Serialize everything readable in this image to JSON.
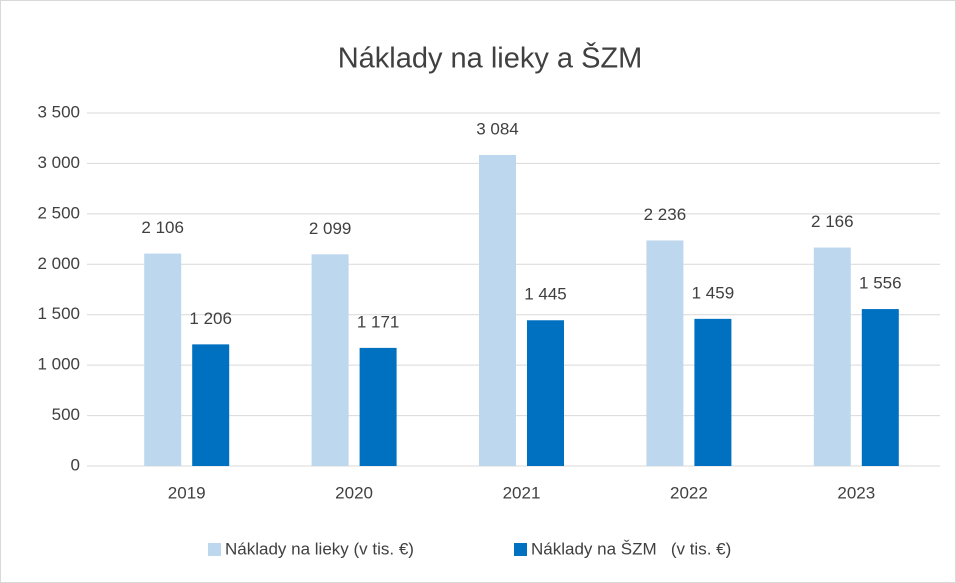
{
  "chart_data": {
    "type": "bar",
    "title": "Náklady na lieky a ŠZM",
    "categories": [
      "2019",
      "2020",
      "2021",
      "2022",
      "2023"
    ],
    "series": [
      {
        "name": "Náklady na lieky (v tis. €)",
        "color": "#bdd7ee",
        "values": [
          2106,
          2099,
          3084,
          2236,
          2166
        ],
        "value_labels": [
          "2 106",
          "2 099",
          "3 084",
          "2 236",
          "2 166"
        ]
      },
      {
        "name": "Náklady na ŠZM   (v tis. €)",
        "color": "#0070c0",
        "values": [
          1206,
          1171,
          1445,
          1459,
          1556
        ],
        "value_labels": [
          "1 206",
          "1 171",
          "1 445",
          "1 459",
          "1 556"
        ]
      }
    ],
    "ylim": [
      0,
      3500
    ],
    "yticks": [
      0,
      500,
      {
        "value": 1000,
        "label": "1 000"
      },
      {
        "value": 1500,
        "label": "1 500"
      },
      {
        "value": 2000,
        "label": "2 000"
      },
      {
        "value": 2500,
        "label": "2 500"
      },
      {
        "value": 3000,
        "label": "3 000"
      },
      {
        "value": 3500,
        "label": "3 500"
      }
    ],
    "grid": true,
    "legend": "bottom"
  }
}
